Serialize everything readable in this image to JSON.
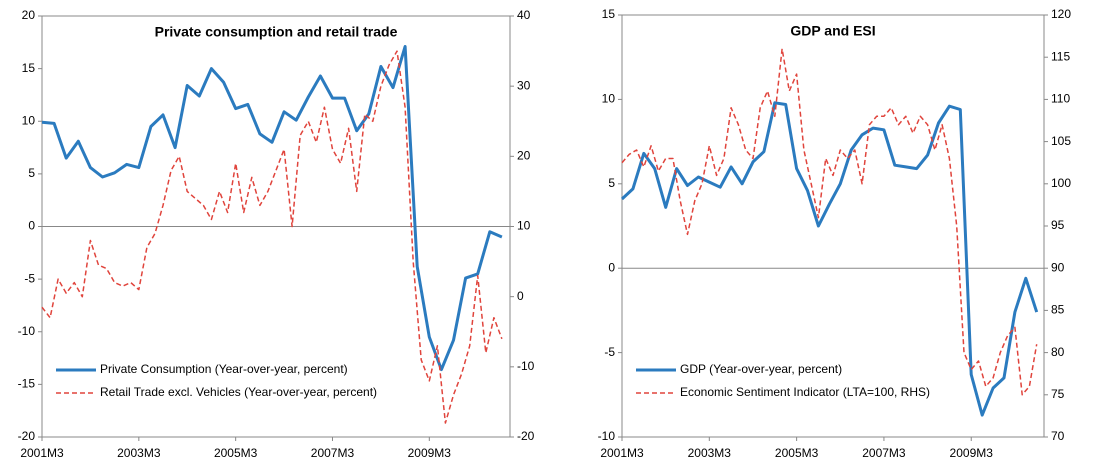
{
  "chart_data": [
    {
      "type": "line",
      "title": "Private consumption and retail trade",
      "xlim": [
        "2001M3",
        "2010M11"
      ],
      "xticks": [
        "2001M3",
        "2003M3",
        "2005M3",
        "2007M3",
        "2009M3"
      ],
      "ylim": [
        -20,
        20
      ],
      "yticks": [
        -20,
        -15,
        -10,
        -5,
        0,
        5,
        10,
        15,
        20
      ],
      "y2lim": [
        -20,
        40
      ],
      "y2ticks": [
        -20,
        -10,
        0,
        10,
        20,
        30,
        40
      ],
      "legend": "lower left",
      "series": [
        {
          "name": "Private Consumption (Year-over-year,  percent)",
          "color": "#2b7bbf",
          "style": "solid",
          "x": [
            "2001M3",
            "2001M6",
            "2001M9",
            "2001M12",
            "2002M3",
            "2002M6",
            "2002M9",
            "2002M12",
            "2003M3",
            "2003M6",
            "2003M9",
            "2003M12",
            "2004M3",
            "2004M6",
            "2004M9",
            "2004M12",
            "2005M3",
            "2005M6",
            "2005M9",
            "2005M12",
            "2006M3",
            "2006M6",
            "2006M9",
            "2006M12",
            "2007M3",
            "2007M6",
            "2007M9",
            "2007M12",
            "2008M3",
            "2008M6",
            "2008M9",
            "2008M12",
            "2009M3",
            "2009M6",
            "2009M9",
            "2009M12",
            "2010M3",
            "2010M6",
            "2010M9"
          ],
          "values": [
            9.9,
            9.8,
            6.5,
            8.1,
            5.6,
            4.7,
            5.1,
            5.9,
            5.6,
            9.5,
            10.6,
            7.5,
            13.4,
            12.4,
            15.0,
            13.7,
            11.2,
            11.6,
            8.8,
            8.0,
            10.9,
            10.1,
            12.3,
            14.3,
            12.2,
            12.2,
            9.1,
            10.7,
            15.2,
            13.2,
            17.1,
            -3.8,
            -10.5,
            -13.6,
            -10.8,
            -4.9,
            -4.5,
            -0.5,
            -1.0
          ]
        },
        {
          "name": "Retail Trade excl. Vehicles (Year-over-year,  percent)",
          "color": "#e0443c",
          "style": "dashed",
          "axis": "y2",
          "x": [
            "2001M3",
            "2001M5",
            "2001M7",
            "2001M9",
            "2001M11",
            "2002M1",
            "2002M3",
            "2002M5",
            "2002M7",
            "2002M9",
            "2002M11",
            "2003M1",
            "2003M3",
            "2003M5",
            "2003M7",
            "2003M9",
            "2003M11",
            "2004M1",
            "2004M3",
            "2004M5",
            "2004M7",
            "2004M9",
            "2004M11",
            "2005M1",
            "2005M3",
            "2005M5",
            "2005M7",
            "2005M9",
            "2005M11",
            "2006M1",
            "2006M3",
            "2006M5",
            "2006M7",
            "2006M9",
            "2006M11",
            "2007M1",
            "2007M3",
            "2007M5",
            "2007M7",
            "2007M9",
            "2007M11",
            "2008M1",
            "2008M3",
            "2008M5",
            "2008M7",
            "2008M9",
            "2008M11",
            "2009M1",
            "2009M3",
            "2009M5",
            "2009M7",
            "2009M9",
            "2009M11",
            "2010M1",
            "2010M3",
            "2010M5",
            "2010M7",
            "2010M9"
          ],
          "values": [
            -1.5,
            -3,
            2.5,
            0.5,
            2,
            0,
            8,
            4.5,
            4,
            2,
            1.5,
            2,
            1,
            7,
            9,
            13,
            18,
            20,
            15,
            14,
            13,
            11,
            15,
            12,
            19,
            12,
            17,
            13,
            15,
            18,
            21,
            10,
            23,
            25,
            22,
            27,
            21,
            19,
            24,
            15,
            26,
            25,
            30,
            33,
            35,
            27,
            5,
            -9,
            -12,
            -7,
            -18,
            -14,
            -11,
            -7,
            3,
            -8,
            -3,
            -6
          ]
        }
      ]
    },
    {
      "type": "line",
      "title": "GDP and ESI",
      "xlim": [
        "2001M3",
        "2010M11"
      ],
      "xticks": [
        "2001M3",
        "2003M3",
        "2005M3",
        "2007M3",
        "2009M3"
      ],
      "ylim": [
        -10,
        15
      ],
      "yticks": [
        -10,
        -5,
        0,
        5,
        10,
        15
      ],
      "y2lim": [
        70,
        120
      ],
      "y2ticks": [
        70,
        75,
        80,
        85,
        90,
        95,
        100,
        105,
        110,
        115,
        120
      ],
      "legend": "lower left",
      "series": [
        {
          "name": "GDP (Year-over-year,  percent)",
          "color": "#2b7bbf",
          "style": "solid",
          "x": [
            "2001M3",
            "2001M6",
            "2001M9",
            "2001M12",
            "2002M3",
            "2002M6",
            "2002M9",
            "2002M12",
            "2003M3",
            "2003M6",
            "2003M9",
            "2003M12",
            "2004M3",
            "2004M6",
            "2004M9",
            "2004M12",
            "2005M3",
            "2005M6",
            "2005M9",
            "2005M12",
            "2006M3",
            "2006M6",
            "2006M9",
            "2006M12",
            "2007M3",
            "2007M6",
            "2007M9",
            "2007M12",
            "2008M3",
            "2008M6",
            "2008M9",
            "2008M12",
            "2009M3",
            "2009M6",
            "2009M9",
            "2009M12",
            "2010M3",
            "2010M6",
            "2010M9"
          ],
          "values": [
            4.1,
            4.7,
            6.8,
            5.9,
            3.6,
            5.9,
            4.9,
            5.4,
            5.1,
            4.8,
            6.0,
            5.0,
            6.3,
            6.9,
            9.8,
            9.7,
            5.9,
            4.6,
            2.5,
            3.8,
            5.0,
            7.0,
            7.9,
            8.3,
            8.2,
            6.1,
            6.0,
            5.9,
            6.7,
            8.6,
            9.6,
            9.4,
            -6.3,
            -8.7,
            -7.1,
            -6.5,
            -2.6,
            -0.6,
            -2.6
          ]
        },
        {
          "name": "Economic Sentiment Indicator (LTA=100,  RHS)",
          "color": "#e0443c",
          "style": "dashed",
          "axis": "y2",
          "x": [
            "2001M3",
            "2001M5",
            "2001M7",
            "2001M9",
            "2001M11",
            "2002M1",
            "2002M3",
            "2002M5",
            "2002M7",
            "2002M9",
            "2002M11",
            "2003M1",
            "2003M3",
            "2003M5",
            "2003M7",
            "2003M9",
            "2003M11",
            "2004M1",
            "2004M3",
            "2004M5",
            "2004M7",
            "2004M9",
            "2004M11",
            "2005M1",
            "2005M3",
            "2005M5",
            "2005M7",
            "2005M9",
            "2005M11",
            "2006M1",
            "2006M3",
            "2006M5",
            "2006M7",
            "2006M9",
            "2006M11",
            "2007M1",
            "2007M3",
            "2007M5",
            "2007M7",
            "2007M9",
            "2007M11",
            "2008M1",
            "2008M3",
            "2008M5",
            "2008M7",
            "2008M9",
            "2008M11",
            "2009M1",
            "2009M3",
            "2009M5",
            "2009M7",
            "2009M9",
            "2009M11",
            "2010M1",
            "2010M3",
            "2010M5",
            "2010M7",
            "2010M9"
          ],
          "values": [
            102.5,
            103.5,
            104,
            102,
            104.5,
            101.5,
            103,
            103,
            98,
            94,
            98,
            100,
            104.5,
            101,
            103,
            109,
            107,
            104,
            103,
            109,
            111,
            108,
            116,
            111,
            113,
            104,
            100,
            96,
            103,
            101,
            104,
            103,
            104,
            100,
            107,
            108,
            108,
            109,
            107,
            108,
            106,
            108,
            107,
            104,
            107,
            103,
            95,
            80,
            78,
            79,
            76,
            77,
            80,
            82,
            83,
            75,
            76,
            81
          ]
        }
      ]
    }
  ]
}
